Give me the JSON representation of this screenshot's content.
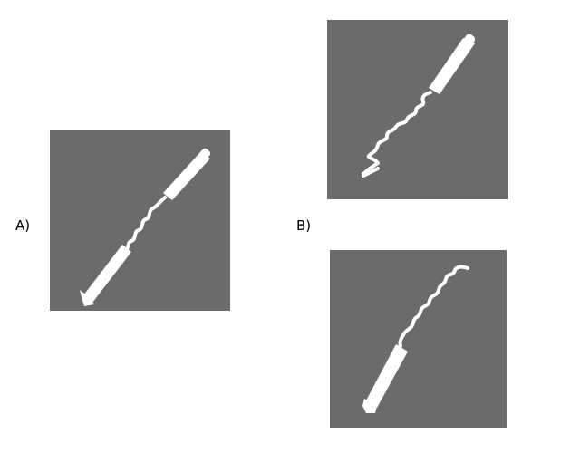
{
  "labels": {
    "a": "A)",
    "b": "B)"
  },
  "colors": {
    "panel_background": "#6b6b6b",
    "figure_fill": "#ffffff",
    "page_background": "#ffffff"
  },
  "panels": [
    {
      "id": "A",
      "content": "rod-spring-rod"
    },
    {
      "id": "B-top",
      "content": "rod-spring"
    },
    {
      "id": "B-bottom",
      "content": "rod-spring"
    }
  ]
}
